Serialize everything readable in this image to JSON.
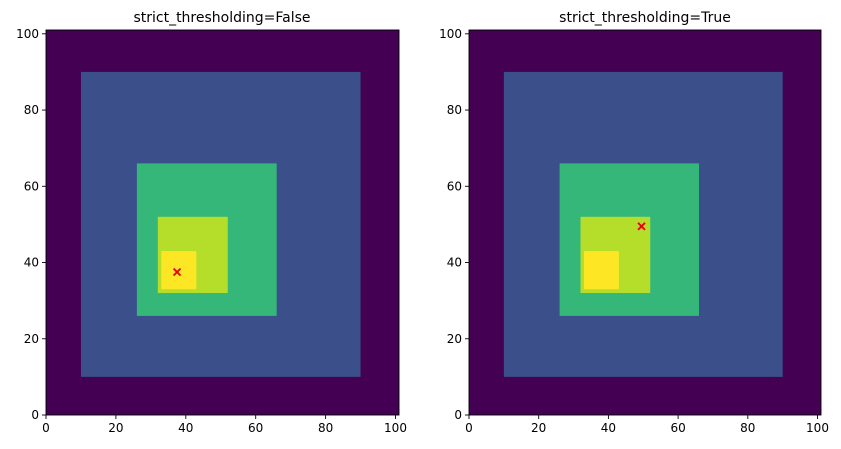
{
  "chart_data": [
    {
      "type": "heatmap",
      "title": "strict_thresholding=False",
      "xlim": [
        0,
        101
      ],
      "ylim": [
        0,
        101
      ],
      "xticks": [
        0,
        20,
        40,
        60,
        80,
        100
      ],
      "yticks": [
        0,
        20,
        40,
        60,
        80,
        100
      ],
      "grid": false,
      "colormap": "viridis",
      "regions": [
        {
          "x": [
            0,
            101
          ],
          "y": [
            0,
            101
          ],
          "color": "#440154"
        },
        {
          "x": [
            10,
            90
          ],
          "y": [
            10,
            90
          ],
          "color": "#3b4f8a"
        },
        {
          "x": [
            26,
            66
          ],
          "y": [
            26,
            66
          ],
          "color": "#35b779"
        },
        {
          "x": [
            32,
            52
          ],
          "y": [
            32,
            52
          ],
          "color": "#b5de2b"
        },
        {
          "x": [
            33,
            43
          ],
          "y": [
            33,
            43
          ],
          "color": "#fde725"
        }
      ],
      "marker": {
        "x": 37.5,
        "y": 37.5,
        "symbol": "x",
        "color": "#e8000b"
      }
    },
    {
      "type": "heatmap",
      "title": "strict_thresholding=True",
      "xlim": [
        0,
        101
      ],
      "ylim": [
        0,
        101
      ],
      "xticks": [
        0,
        20,
        40,
        60,
        80,
        100
      ],
      "yticks": [
        0,
        20,
        40,
        60,
        80,
        100
      ],
      "grid": false,
      "colormap": "viridis",
      "regions": [
        {
          "x": [
            0,
            101
          ],
          "y": [
            0,
            101
          ],
          "color": "#440154"
        },
        {
          "x": [
            10,
            90
          ],
          "y": [
            10,
            90
          ],
          "color": "#3b4f8a"
        },
        {
          "x": [
            26,
            66
          ],
          "y": [
            26,
            66
          ],
          "color": "#35b779"
        },
        {
          "x": [
            32,
            52
          ],
          "y": [
            32,
            52
          ],
          "color": "#b5de2b"
        },
        {
          "x": [
            33,
            43
          ],
          "y": [
            33,
            43
          ],
          "color": "#fde725"
        }
      ],
      "marker": {
        "x": 49.5,
        "y": 49.5,
        "symbol": "x",
        "color": "#e8000b"
      }
    }
  ]
}
